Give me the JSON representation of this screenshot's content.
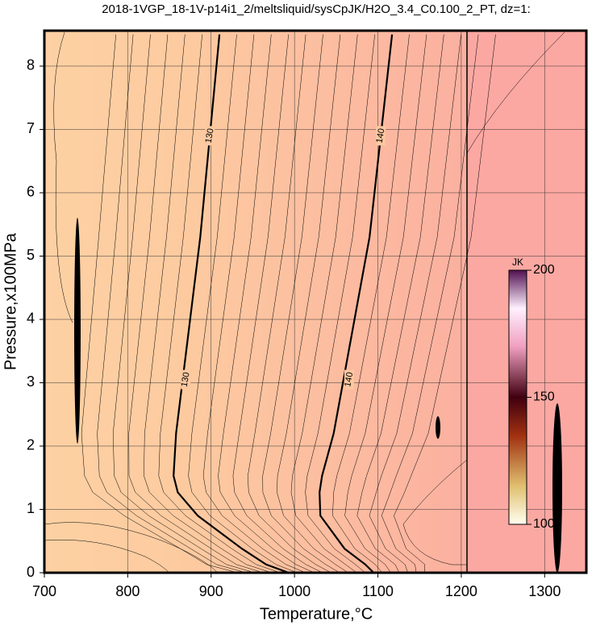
{
  "chart_data": {
    "type": "contour",
    "title": "2018-1VGP_18-1V-p14i1_2/meltsliquid/sysCpJK/H2O_3.4_C0.100_2_PT, dz=1:",
    "x_label": "Temperature,°C",
    "y_label": "Pressure,x100MPa",
    "xlim": [
      700,
      1350
    ],
    "ylim": [
      0,
      8.56
    ],
    "xticks": [
      700,
      800,
      900,
      1000,
      1100,
      1200,
      1300
    ],
    "yticks": [
      0,
      1,
      2,
      3,
      4,
      5,
      6,
      7,
      8
    ],
    "grid": true,
    "series": [
      {
        "level": 130,
        "color": "#000000",
        "x": [
          993,
          966,
          937,
          884,
          860,
          855,
          858,
          887,
          910
        ],
        "y": [
          0,
          0.13,
          0.38,
          0.9,
          1.27,
          1.53,
          2.2,
          5.3,
          8.5
        ]
      },
      {
        "level": 140,
        "color": "#000000",
        "x": [
          1095,
          1085,
          1060,
          1031,
          1030,
          1033,
          1047,
          1090,
          1117
        ],
        "y": [
          0,
          0.13,
          0.38,
          0.9,
          1.27,
          1.53,
          2.2,
          5.3,
          8.5
        ]
      }
    ],
    "colorbar": {
      "label": "JK",
      "lim": [
        100,
        200
      ],
      "ticks": [
        100,
        150,
        200
      ]
    }
  }
}
